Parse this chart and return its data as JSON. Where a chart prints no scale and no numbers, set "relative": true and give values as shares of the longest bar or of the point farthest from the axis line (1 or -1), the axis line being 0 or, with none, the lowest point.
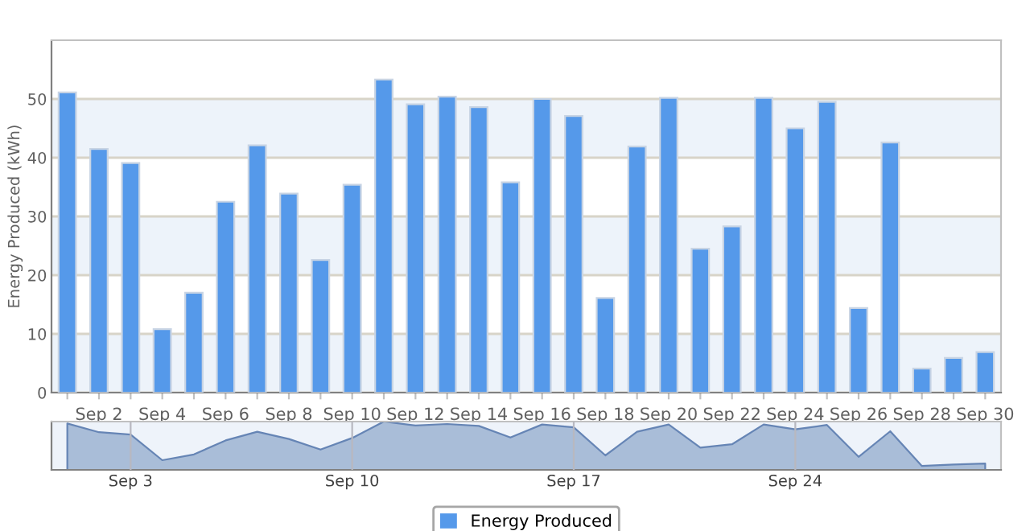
{
  "chart_data": [
    {
      "type": "bar",
      "ylabel": "Energy Produced (kWh)",
      "categories": [
        null,
        "Sep 2",
        null,
        "Sep 4",
        null,
        "Sep 6",
        null,
        "Sep 8",
        null,
        "Sep 10",
        null,
        "Sep 12",
        null,
        "Sep 14",
        null,
        "Sep 16",
        null,
        "Sep 18",
        null,
        "Sep 20",
        null,
        "Sep 22",
        null,
        "Sep 24",
        null,
        "Sep 26",
        null,
        "Sep 28",
        null,
        "Sep 30"
      ],
      "series": [
        {
          "name": "Energy Produced",
          "color": "#5599ea",
          "values": [
            51.1,
            41.5,
            39.1,
            10.8,
            17.0,
            32.5,
            42.1,
            33.9,
            22.6,
            35.4,
            53.3,
            49.1,
            50.4,
            48.6,
            35.8,
            50.0,
            47.1,
            16.1,
            41.9,
            50.2,
            24.5,
            28.3,
            50.2,
            45.0,
            49.5,
            14.4,
            42.6,
            4.1,
            5.9,
            6.9
          ]
        }
      ],
      "ylim": [
        0,
        60
      ],
      "yticks": [
        0,
        10,
        20,
        30,
        40,
        50
      ],
      "grid": "y",
      "bands": [
        {
          "axis": "y",
          "from": 0,
          "to": 10,
          "color": "#edf3fa"
        },
        {
          "axis": "y",
          "from": 20,
          "to": 30,
          "color": "#edf3fa"
        },
        {
          "axis": "y",
          "from": 40,
          "to": 50,
          "color": "#edf3fa"
        }
      ],
      "legend": "bottom"
    },
    {
      "type": "area",
      "relative": true,
      "categories": [
        null,
        null,
        "Sep 3",
        null,
        null,
        null,
        null,
        null,
        null,
        "Sep 10",
        null,
        null,
        null,
        null,
        null,
        null,
        "Sep 17",
        null,
        null,
        null,
        null,
        null,
        null,
        "Sep 24",
        null,
        null,
        null,
        null,
        null,
        null
      ],
      "grid": "x",
      "series": [
        {
          "color": "#a9bdd8",
          "values": [
            0.96,
            0.78,
            0.73,
            0.2,
            0.32,
            0.61,
            0.79,
            0.64,
            0.42,
            0.66,
            1.0,
            0.92,
            0.95,
            0.91,
            0.67,
            0.94,
            0.88,
            0.3,
            0.79,
            0.94,
            0.46,
            0.53,
            0.94,
            0.84,
            0.93,
            0.27,
            0.8,
            0.08,
            0.11,
            0.13
          ]
        }
      ]
    }
  ]
}
